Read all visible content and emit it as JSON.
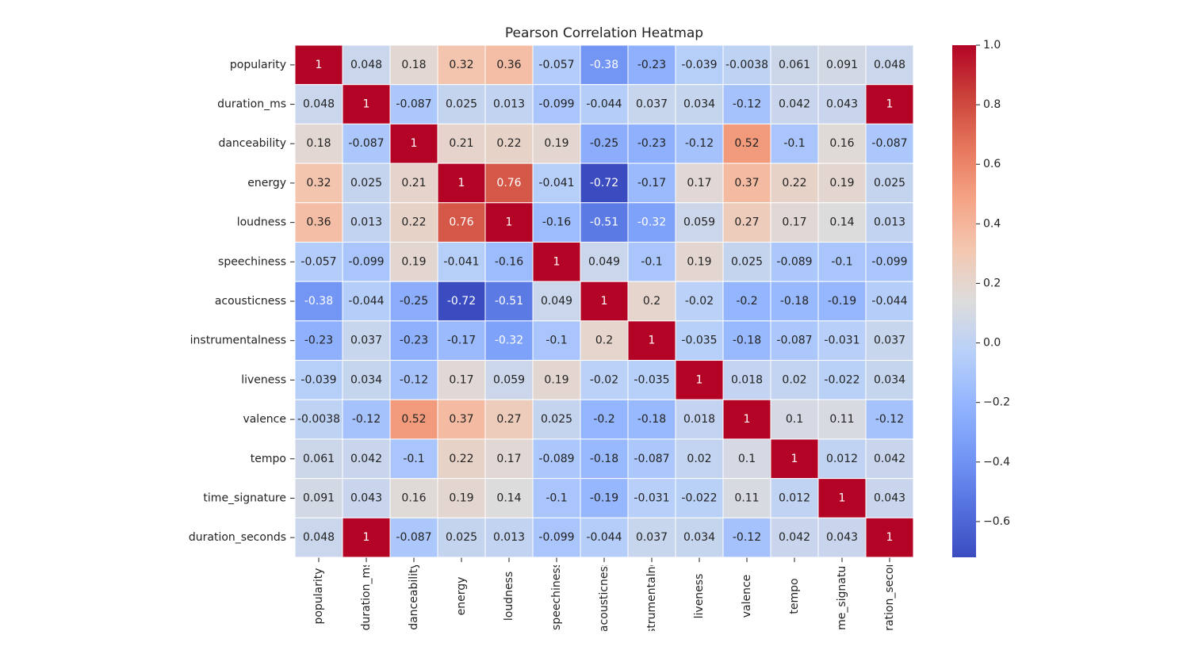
{
  "chart_data": {
    "type": "heatmap",
    "title": "Pearson Correlation Heatmap",
    "categories": [
      "popularity",
      "duration_ms",
      "danceability",
      "energy",
      "loudness",
      "speechiness",
      "acousticness",
      "instrumentalness",
      "liveness",
      "valence",
      "tempo",
      "time_signature",
      "duration_seconds"
    ],
    "values": [
      [
        1,
        0.048,
        0.18,
        0.32,
        0.36,
        -0.057,
        -0.38,
        -0.23,
        -0.039,
        -0.0038,
        0.061,
        0.091,
        0.048
      ],
      [
        0.048,
        1,
        -0.087,
        0.025,
        0.013,
        -0.099,
        -0.044,
        0.037,
        0.034,
        -0.12,
        0.042,
        0.043,
        1
      ],
      [
        0.18,
        -0.087,
        1,
        0.21,
        0.22,
        0.19,
        -0.25,
        -0.23,
        -0.12,
        0.52,
        -0.1,
        0.16,
        -0.087
      ],
      [
        0.32,
        0.025,
        0.21,
        1,
        0.76,
        -0.041,
        -0.72,
        -0.17,
        0.17,
        0.37,
        0.22,
        0.19,
        0.025
      ],
      [
        0.36,
        0.013,
        0.22,
        0.76,
        1,
        -0.16,
        -0.51,
        -0.32,
        0.059,
        0.27,
        0.17,
        0.14,
        0.013
      ],
      [
        -0.057,
        -0.099,
        0.19,
        -0.041,
        -0.16,
        1,
        0.049,
        -0.1,
        0.19,
        0.025,
        -0.089,
        -0.1,
        -0.099
      ],
      [
        -0.38,
        -0.044,
        -0.25,
        -0.72,
        -0.51,
        0.049,
        1,
        0.2,
        -0.02,
        -0.2,
        -0.18,
        -0.19,
        -0.044
      ],
      [
        -0.23,
        0.037,
        -0.23,
        -0.17,
        -0.32,
        -0.1,
        0.2,
        1,
        -0.035,
        -0.18,
        -0.087,
        -0.031,
        0.037
      ],
      [
        -0.039,
        0.034,
        -0.12,
        0.17,
        0.059,
        0.19,
        -0.02,
        -0.035,
        1,
        0.018,
        0.02,
        -0.022,
        0.034
      ],
      [
        -0.0038,
        -0.12,
        0.52,
        0.37,
        0.27,
        0.025,
        -0.2,
        -0.18,
        0.018,
        1,
        0.1,
        0.11,
        -0.12
      ],
      [
        0.061,
        0.042,
        -0.1,
        0.22,
        0.17,
        -0.089,
        -0.18,
        -0.087,
        0.02,
        0.1,
        1,
        0.012,
        0.042
      ],
      [
        0.091,
        0.043,
        0.16,
        0.19,
        0.14,
        -0.1,
        -0.19,
        -0.031,
        -0.022,
        0.11,
        0.012,
        1,
        0.043
      ],
      [
        0.048,
        1,
        -0.087,
        0.025,
        0.013,
        -0.099,
        -0.044,
        0.037,
        0.034,
        -0.12,
        0.042,
        0.043,
        1
      ]
    ],
    "colormap": "coolwarm",
    "zlim": [
      -0.72,
      1.0
    ],
    "zticks": [
      {
        "value": 1.0,
        "label": "1.0"
      },
      {
        "value": 0.8,
        "label": "0.8"
      },
      {
        "value": 0.6,
        "label": "0.6"
      },
      {
        "value": 0.4,
        "label": "0.4"
      },
      {
        "value": 0.2,
        "label": "0.2"
      },
      {
        "value": 0.0,
        "label": "0.0"
      },
      {
        "value": -0.2,
        "label": "−0.2"
      },
      {
        "value": -0.4,
        "label": "−0.4"
      },
      {
        "value": -0.6,
        "label": "−0.6"
      }
    ]
  }
}
